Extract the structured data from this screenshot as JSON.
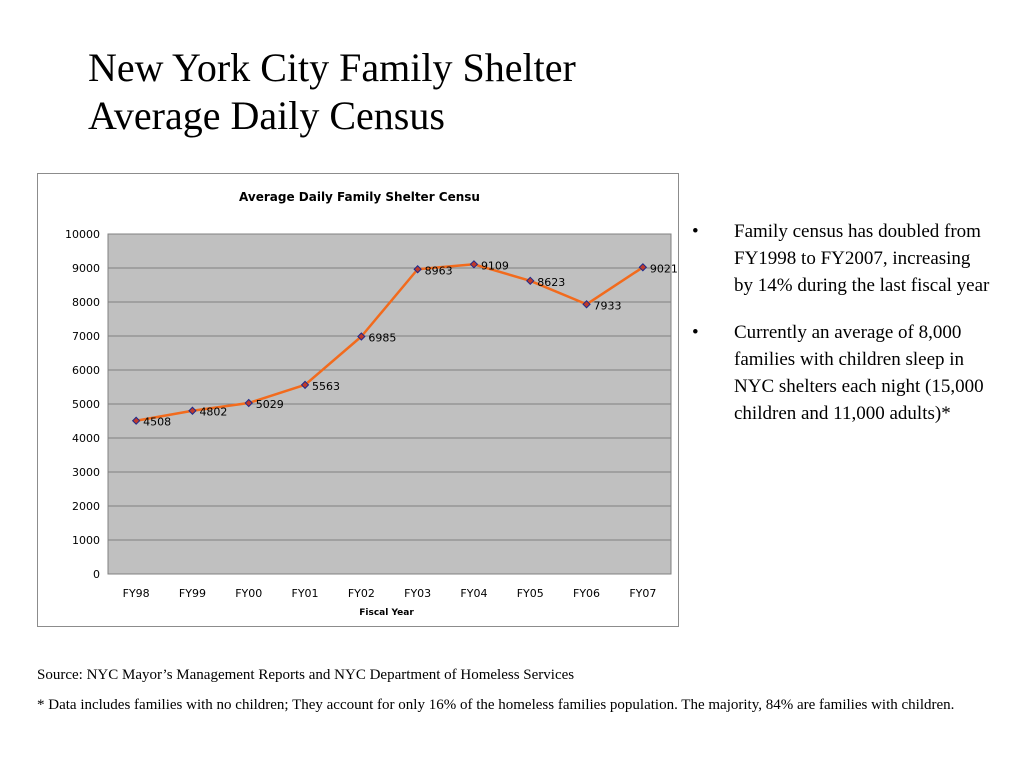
{
  "slide": {
    "title_line1": "New York City Family Shelter",
    "title_line2": "Average Daily Census",
    "bullets": [
      "Family census has doubled from FY1998 to FY2007, increasing by 14% during the last fiscal year",
      "Currently an average of 8,000 families with children sleep in NYC shelters each night (15,000 children and 11,000 adults)*"
    ],
    "bullet_glyph": "•",
    "source": "Source: NYC Mayor’s Management Reports and NYC Department of Homeless Services",
    "footnote": "*  Data includes families with no children; They account for only 16% of the homeless families population. The majority, 84%  are families with children."
  },
  "chart_data": {
    "type": "line",
    "title": "Average Daily Family Shelter Censu",
    "xlabel": "Fiscal Year",
    "ylabel": "",
    "categories": [
      "FY98",
      "FY99",
      "FY00",
      "FY01",
      "FY02",
      "FY03",
      "FY04",
      "FY05",
      "FY06",
      "FY07"
    ],
    "series": [
      {
        "values": [
          4508,
          4802,
          5029,
          5563,
          6985,
          8963,
          9109,
          8623,
          7933,
          9021
        ]
      }
    ],
    "ylim": [
      0,
      10000
    ],
    "yticks": [
      0,
      1000,
      2000,
      3000,
      4000,
      5000,
      6000,
      7000,
      8000,
      9000,
      10000
    ],
    "grid": true,
    "legend": "none",
    "data_labels": true,
    "colors": {
      "line": "#f26b1d",
      "marker": "#1f2a8a",
      "marker_inner": "#c0392b",
      "plot_bg": "#c0c0c0",
      "grid": "#808080"
    }
  }
}
